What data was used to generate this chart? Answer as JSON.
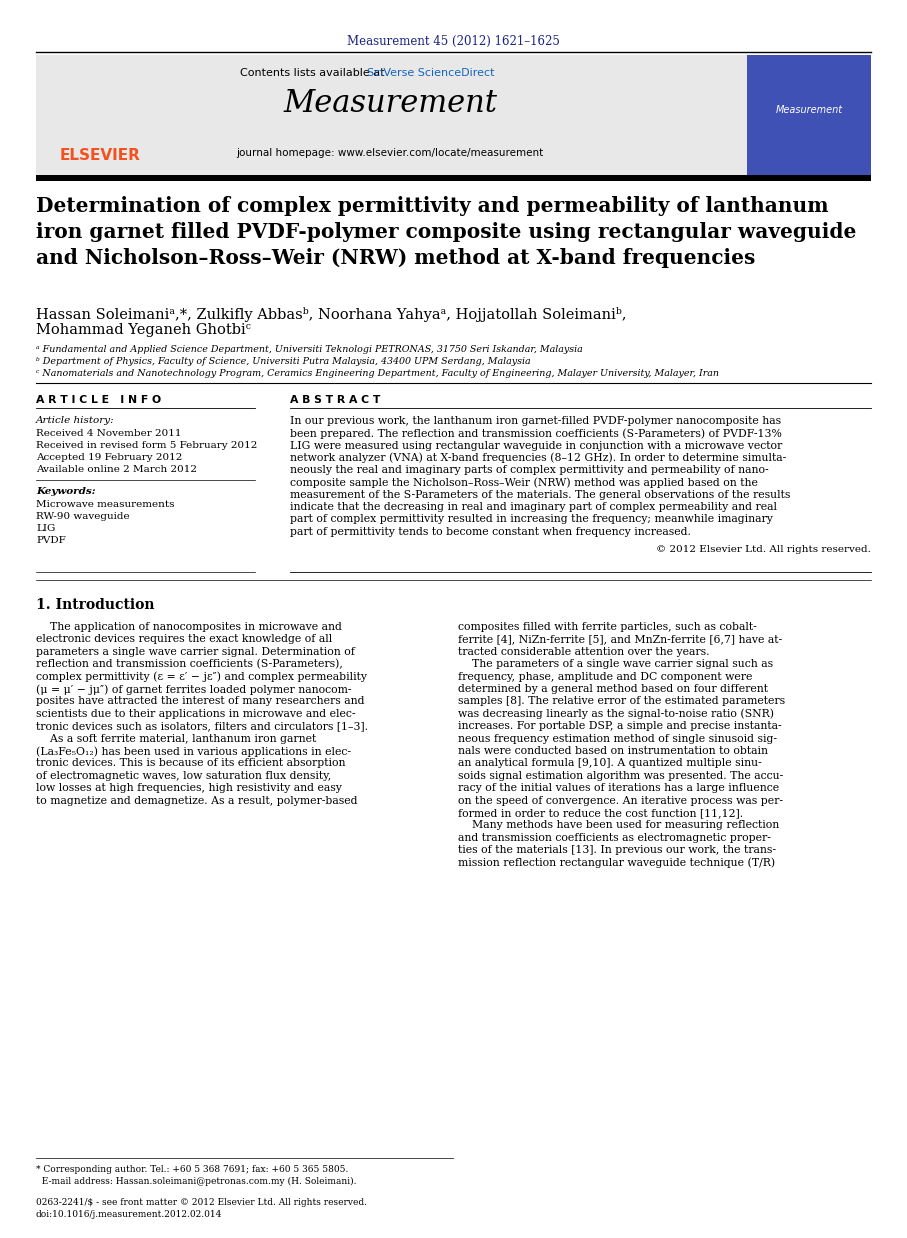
{
  "journal_ref": "Measurement 45 (2012) 1621–1625",
  "journal_ref_color": "#1a237e",
  "contents_text": "Contents lists available at ",
  "sciverse_text": "SciVerse ScienceDirect",
  "sciverse_color": "#1565c0",
  "journal_name": "Measurement",
  "homepage_text": "journal homepage: www.elsevier.com/locate/measurement",
  "title": "Determination of complex permittivity and permeability of lanthanum\niron garnet filled PVDF-polymer composite using rectangular waveguide\nand Nicholson–Ross–Weir (NRW) method at X-band frequencies",
  "authors_line1": "Hassan Soleimaniᵃ,*, Zulkifly Abbasᵇ, Noorhana Yahyaᵃ, Hojjatollah Soleimaniᵇ,",
  "authors_line2": "Mohammad Yeganeh Ghotbiᶜ",
  "affil_a": "ᵃ Fundamental and Applied Science Department, Universiti Teknologi PETRONAS, 31750 Seri Iskandar, Malaysia",
  "affil_b": "ᵇ Department of Physics, Faculty of Science, Universiti Putra Malaysia, 43400 UPM Serdang, Malaysia",
  "affil_c": "ᶜ Nanomaterials and Nanotechnology Program, Ceramics Engineering Department, Faculty of Engineering, Malayer University, Malayer, Iran",
  "article_info_header": "A R T I C L E   I N F O",
  "abstract_header": "A B S T R A C T",
  "article_history_label": "Article history:",
  "received1": "Received 4 November 2011",
  "received2": "Received in revised form 5 February 2012",
  "accepted": "Accepted 19 February 2012",
  "available": "Available online 2 March 2012",
  "keywords_label": "Keywords:",
  "keyword1": "Microwave measurements",
  "keyword2": "RW-90 waveguide",
  "keyword3": "LIG",
  "keyword4": "PVDF",
  "copyright_text": "© 2012 Elsevier Ltd. All rights reserved.",
  "section1_header": "1. Introduction",
  "bg_header": "#e8e8e8",
  "bg_right_panel": "#3f51b5",
  "text_color": "#000000",
  "link_color": "#1565c0",
  "abstract_lines": [
    "In our previous work, the lanthanum iron garnet-filled PVDF-polymer nanocomposite has",
    "been prepared. The reflection and transmission coefficients (S-Parameters) of PVDF-13%",
    "LIG were measured using rectangular waveguide in conjunction with a microwave vector",
    "network analyzer (VNA) at X-band frequencies (8–12 GHz). In order to determine simulta-",
    "neously the real and imaginary parts of complex permittivity and permeability of nano-",
    "composite sample the Nicholson–Ross–Weir (NRW) method was applied based on the",
    "measurement of the S-Parameters of the materials. The general observations of the results",
    "indicate that the decreasing in real and imaginary part of complex permeability and real",
    "part of complex permittivity resulted in increasing the frequency; meanwhile imaginary",
    "part of permittivity tends to become constant when frequency increased."
  ],
  "intro_col1_lines": [
    "    The application of nanocomposites in microwave and",
    "electronic devices requires the exact knowledge of all",
    "parameters a single wave carrier signal. Determination of",
    "reflection and transmission coefficients (S-Parameters),",
    "complex permittivity (ε = ε′ − jε″) and complex permeability",
    "(μ = μ′ − jμ″) of garnet ferrites loaded polymer nanocom-",
    "posites have attracted the interest of many researchers and",
    "scientists due to their applications in microwave and elec-",
    "tronic devices such as isolators, filters and circulators [1–3].",
    "    As a soft ferrite material, lanthanum iron garnet",
    "(La₃Fe₅O₁₂) has been used in various applications in elec-",
    "tronic devices. This is because of its efficient absorption",
    "of electromagnetic waves, low saturation flux density,",
    "low losses at high frequencies, high resistivity and easy",
    "to magnetize and demagnetize. As a result, polymer-based"
  ],
  "intro_col2_lines": [
    "composites filled with ferrite particles, such as cobalt-",
    "ferrite [4], NiZn-ferrite [5], and MnZn-ferrite [6,7] have at-",
    "tracted considerable attention over the years.",
    "    The parameters of a single wave carrier signal such as",
    "frequency, phase, amplitude and DC component were",
    "determined by a general method based on four different",
    "samples [8]. The relative error of the estimated parameters",
    "was decreasing linearly as the signal-to-noise ratio (SNR)",
    "increases. For portable DSP, a simple and precise instanta-",
    "neous frequency estimation method of single sinusoid sig-",
    "nals were conducted based on instrumentation to obtain",
    "an analytical formula [9,10]. A quantized multiple sinu-",
    "soids signal estimation algorithm was presented. The accu-",
    "racy of the initial values of iterations has a large influence",
    "on the speed of convergence. An iterative process was per-",
    "formed in order to reduce the cost function [11,12].",
    "    Many methods have been used for measuring reflection",
    "and transmission coefficients as electromagnetic proper-",
    "ties of the materials [13]. In previous our work, the trans-",
    "mission reflection rectangular waveguide technique (T/R)"
  ],
  "footer_line1": "* Corresponding author. Tel.: +60 5 368 7691; fax: +60 5 365 5805.",
  "footer_line2": "  E-mail address: Hassan.soleimani@petronas.com.my (H. Soleimani).",
  "issn_line1": "0263-2241/$ - see front matter © 2012 Elsevier Ltd. All rights reserved.",
  "issn_line2": "doi:10.1016/j.measurement.2012.02.014"
}
